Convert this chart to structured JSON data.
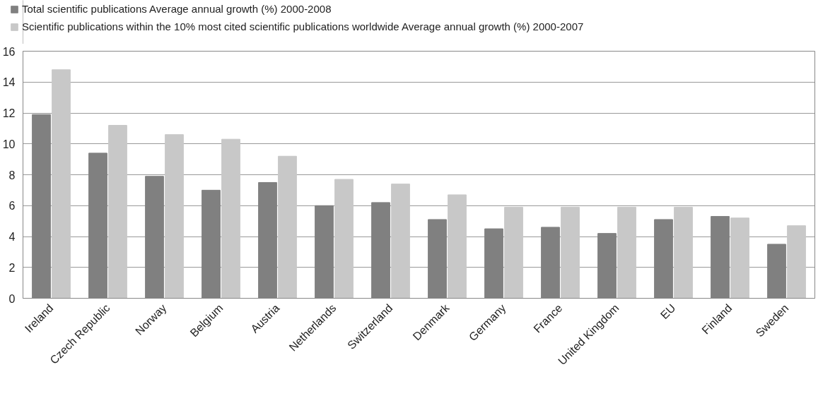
{
  "chart_data": {
    "type": "bar",
    "categories": [
      "Ireland",
      "Czech Republic",
      "Norway",
      "Belgium",
      "Austria",
      "Netherlands",
      "Switzerland",
      "Denmark",
      "Germany",
      "France",
      "United Kingdom",
      "EU",
      "Finland",
      "Sweden"
    ],
    "series": [
      {
        "name": "Total scientific publications Average annual growth (%) 2000-2008",
        "color": "#808080",
        "values": [
          11.9,
          9.4,
          7.9,
          7.0,
          7.5,
          6.0,
          6.2,
          5.1,
          4.5,
          4.6,
          4.2,
          5.1,
          5.3,
          3.5
        ]
      },
      {
        "name": "Scientific publications within the 10% most cited scientific publications worldwide Average annual growth (%) 2000-2007",
        "color": "#c8c8c8",
        "values": [
          14.8,
          11.2,
          10.6,
          10.3,
          9.2,
          7.7,
          7.4,
          6.7,
          5.9,
          5.9,
          5.9,
          5.9,
          5.2,
          4.7
        ]
      }
    ],
    "ylim": [
      0,
      16
    ],
    "yticks": [
      0,
      2,
      4,
      6,
      8,
      10,
      12,
      14,
      16
    ],
    "grid": "y",
    "legend": "top left"
  }
}
